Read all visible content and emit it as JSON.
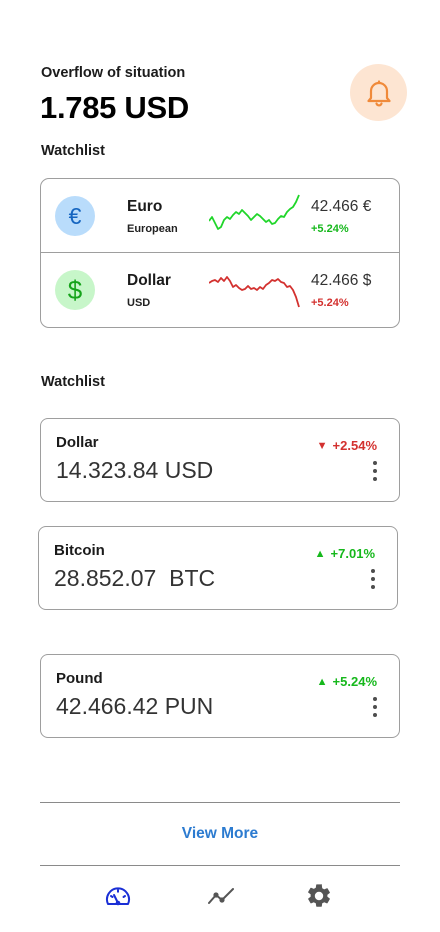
{
  "header": {
    "subtitle": "Overflow of situation",
    "total": "1.785 USD"
  },
  "watchlist_title": "Watchlist",
  "watchlist": [
    {
      "icon": "euro-icon",
      "symbol": "€",
      "name": "Euro",
      "sub": "European",
      "value": "42.466 €",
      "change": "+5.24%",
      "trend": "up",
      "color": "#16b81c"
    },
    {
      "icon": "dollar-icon",
      "symbol": "$",
      "name": "Dollar",
      "sub": "USD",
      "value": "42.466 $",
      "change": "+5.24%",
      "trend": "down",
      "color": "#d3312f"
    }
  ],
  "watchlist2_title": "Watchlist",
  "cards": [
    {
      "name": "Dollar",
      "amount": "14.323.84 USD",
      "change": "+2.54%",
      "trend": "down",
      "arrow": "▼"
    },
    {
      "name": "Bitcoin",
      "amount": "28.852.07  BTC",
      "change": "+7.01%",
      "trend": "up",
      "arrow": "▲"
    },
    {
      "name": "Pound",
      "amount": "42.466.42 PUN",
      "change": "+5.24%",
      "trend": "up",
      "arrow": "▲"
    }
  ],
  "view_more": "View More",
  "nav": [
    {
      "icon": "speedometer-icon",
      "active": true,
      "color": "#1a2fd6"
    },
    {
      "icon": "trend-chart-icon",
      "active": false,
      "color": "#555555"
    },
    {
      "icon": "gear-icon",
      "active": false,
      "color": "#555555"
    }
  ],
  "colors": {
    "accent": "#2c7bd0",
    "up": "#16b81c",
    "down": "#d3312f",
    "bell_bg": "#fde5d2",
    "bell": "#f08a3a"
  }
}
